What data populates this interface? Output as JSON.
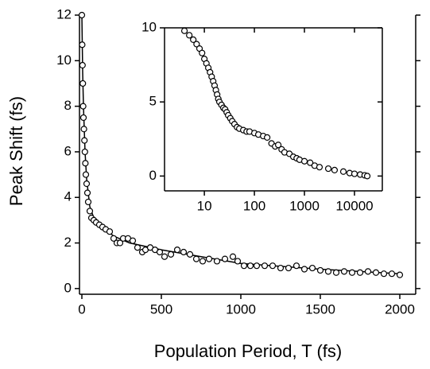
{
  "chart_data": [
    {
      "type": "scatter",
      "xlabel": "Population Period, T (fs)",
      "ylabel": "Peak Shift (fs)",
      "color": "#000000",
      "x": [
        0,
        2,
        4,
        6,
        8,
        10,
        13,
        16,
        19,
        22,
        25,
        30,
        35,
        40,
        50,
        60,
        75,
        90,
        110,
        130,
        150,
        175,
        200,
        220,
        240,
        260,
        290,
        320,
        350,
        380,
        400,
        430,
        460,
        490,
        520,
        560,
        600,
        640,
        680,
        720,
        760,
        800,
        850,
        900,
        950,
        980,
        1020,
        1060,
        1100,
        1150,
        1200,
        1250,
        1300,
        1350,
        1400,
        1450,
        1500,
        1550,
        1600,
        1650,
        1700,
        1750,
        1800,
        1850,
        1900,
        1950,
        2000
      ],
      "values": [
        12,
        10.7,
        9.8,
        9.0,
        8.0,
        7.5,
        7.0,
        6.5,
        6.0,
        5.5,
        5.0,
        4.6,
        4.2,
        3.8,
        3.4,
        3.1,
        3.0,
        2.9,
        2.8,
        2.7,
        2.6,
        2.5,
        2.2,
        2.0,
        2.0,
        2.2,
        2.2,
        2.1,
        1.8,
        1.6,
        1.7,
        1.8,
        1.7,
        1.6,
        1.4,
        1.5,
        1.7,
        1.6,
        1.5,
        1.3,
        1.2,
        1.3,
        1.2,
        1.3,
        1.4,
        1.2,
        1.0,
        1.0,
        1.0,
        1.0,
        1.0,
        0.9,
        0.9,
        1.0,
        0.85,
        0.9,
        0.8,
        0.75,
        0.7,
        0.75,
        0.7,
        0.7,
        0.75,
        0.7,
        0.65,
        0.65,
        0.6
      ],
      "line": {
        "x": [
          0,
          5,
          10,
          20,
          30,
          50,
          75,
          100,
          150,
          200,
          300,
          500,
          750,
          1000,
          1500,
          2000
        ],
        "values": [
          12,
          9.5,
          8,
          6,
          4.8,
          3.6,
          3.1,
          2.9,
          2.6,
          2.3,
          2.0,
          1.7,
          1.4,
          1.1,
          0.85,
          0.65
        ]
      },
      "xlim": [
        -15,
        2100
      ],
      "ylim": [
        -0.25,
        12
      ],
      "xticks": [
        0,
        500,
        1000,
        1500,
        2000
      ],
      "yticks": [
        0,
        2,
        4,
        6,
        8,
        10,
        12
      ]
    },
    {
      "type": "scatter",
      "xscale": "log",
      "color": "#000000",
      "x": [
        4,
        5,
        6,
        7,
        8,
        9,
        10,
        11,
        12,
        13,
        14,
        15,
        16,
        17,
        18,
        19,
        20,
        22,
        24,
        26,
        28,
        30,
        33,
        36,
        40,
        45,
        50,
        60,
        70,
        80,
        100,
        120,
        150,
        180,
        220,
        260,
        300,
        350,
        400,
        500,
        600,
        700,
        800,
        1000,
        1300,
        1600,
        2000,
        3000,
        4000,
        6000,
        8000,
        10000,
        13000,
        16000,
        18000
      ],
      "values": [
        9.8,
        9.5,
        9.2,
        8.9,
        8.6,
        8.3,
        7.9,
        7.6,
        7.3,
        7.0,
        6.7,
        6.4,
        6.1,
        5.8,
        5.5,
        5.2,
        5.0,
        4.8,
        4.6,
        4.5,
        4.3,
        4.1,
        3.9,
        3.7,
        3.5,
        3.3,
        3.2,
        3.1,
        3.0,
        3.0,
        2.9,
        2.8,
        2.7,
        2.6,
        2.2,
        2.0,
        2.1,
        1.8,
        1.6,
        1.5,
        1.3,
        1.2,
        1.1,
        1.0,
        0.9,
        0.7,
        0.6,
        0.5,
        0.4,
        0.3,
        0.2,
        0.15,
        0.1,
        0.05,
        0.0
      ],
      "xlim": [
        1.6,
        36000
      ],
      "ylim": [
        -1,
        10
      ],
      "xticks": [
        10,
        100,
        1000,
        10000
      ],
      "yticks": [
        0,
        5,
        10
      ]
    }
  ]
}
